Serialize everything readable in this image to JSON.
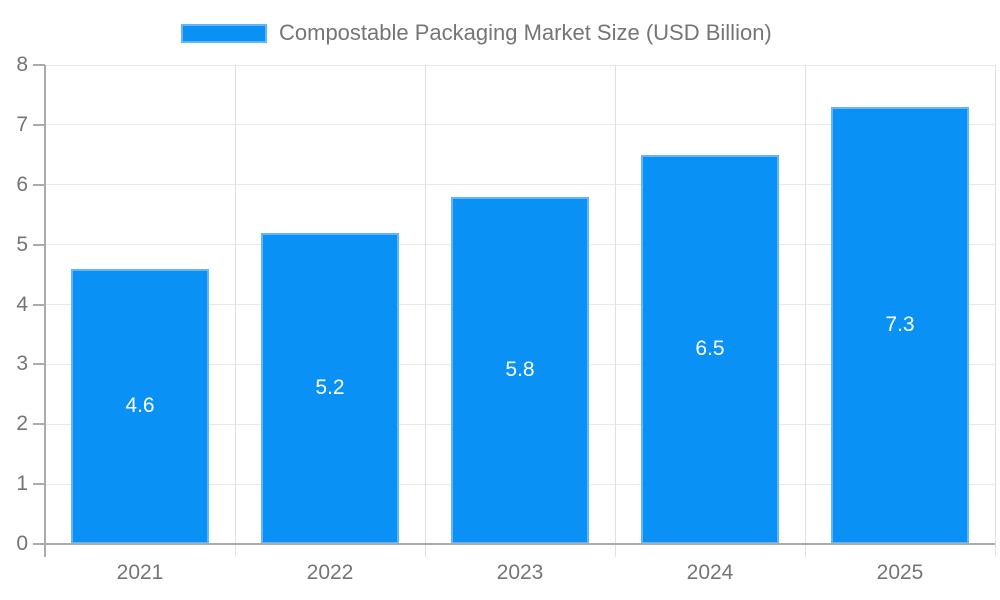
{
  "chart_data": {
    "type": "bar",
    "title": "Compostable Packaging Market Size (USD Billion)",
    "legend": "Compostable Packaging Market Size (USD Billion)",
    "legend_position": "top",
    "categories": [
      "2021",
      "2022",
      "2023",
      "2024",
      "2025"
    ],
    "values": [
      4.6,
      5.2,
      5.8,
      6.5,
      7.3
    ],
    "value_labels": [
      "4.6",
      "5.2",
      "5.8",
      "6.5",
      "7.3"
    ],
    "xlabel": "",
    "ylabel": "",
    "ylim": [
      0,
      8
    ],
    "yticks": [
      0,
      1,
      2,
      3,
      4,
      5,
      6,
      7,
      8
    ],
    "grid": true,
    "colors": {
      "bar_fill": "#0991f5",
      "bar_border": "#64b5f8",
      "text": "#757575",
      "axis": "#ababab",
      "grid_horizontal": "#e8e8e8",
      "grid_vertical": "#e0e0e0",
      "value_label": "#ffffff",
      "background": "#ffffff"
    }
  }
}
